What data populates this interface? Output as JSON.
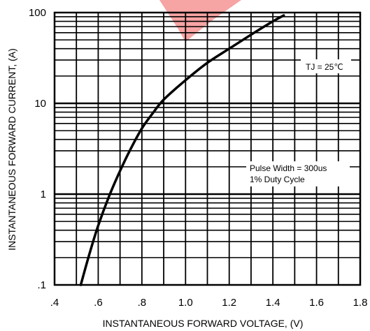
{
  "chart_data": {
    "type": "line",
    "title": "",
    "xlabel": "INSTANTANEOUS FORWARD VOLTAGE, (V)",
    "ylabel": "INSTANTANEOUS FORWARD CURRENT, (A)",
    "xlim": [
      0.4,
      1.8
    ],
    "ylim": [
      0.1,
      100
    ],
    "y_scale": "log",
    "grid": true,
    "x_ticks": [
      ".4",
      ".6",
      ".8",
      "1.0",
      "1.2",
      "1.4",
      "1.6",
      "1.8"
    ],
    "y_ticks": [
      ".1",
      "1",
      "10",
      "100"
    ],
    "series": [
      {
        "x": [
          0.52,
          0.56,
          0.6,
          0.65,
          0.7,
          0.75,
          0.8,
          0.85,
          0.9,
          1.0,
          1.1,
          1.2,
          1.3,
          1.4,
          1.45
        ],
        "y": [
          0.1,
          0.22,
          0.45,
          0.95,
          1.8,
          3.2,
          5.3,
          7.8,
          11,
          18,
          28,
          40,
          57,
          80,
          93
        ]
      }
    ],
    "annotations": [
      {
        "text": "TJ = 25℃",
        "location": "upper-right"
      },
      {
        "text_line1": "Pulse Width = 300us",
        "text_line2": "1% Duty Cycle",
        "location": "center-right"
      }
    ],
    "colors": {
      "line": "#000000",
      "grid": "#000000",
      "watermark": "#e63333"
    }
  }
}
